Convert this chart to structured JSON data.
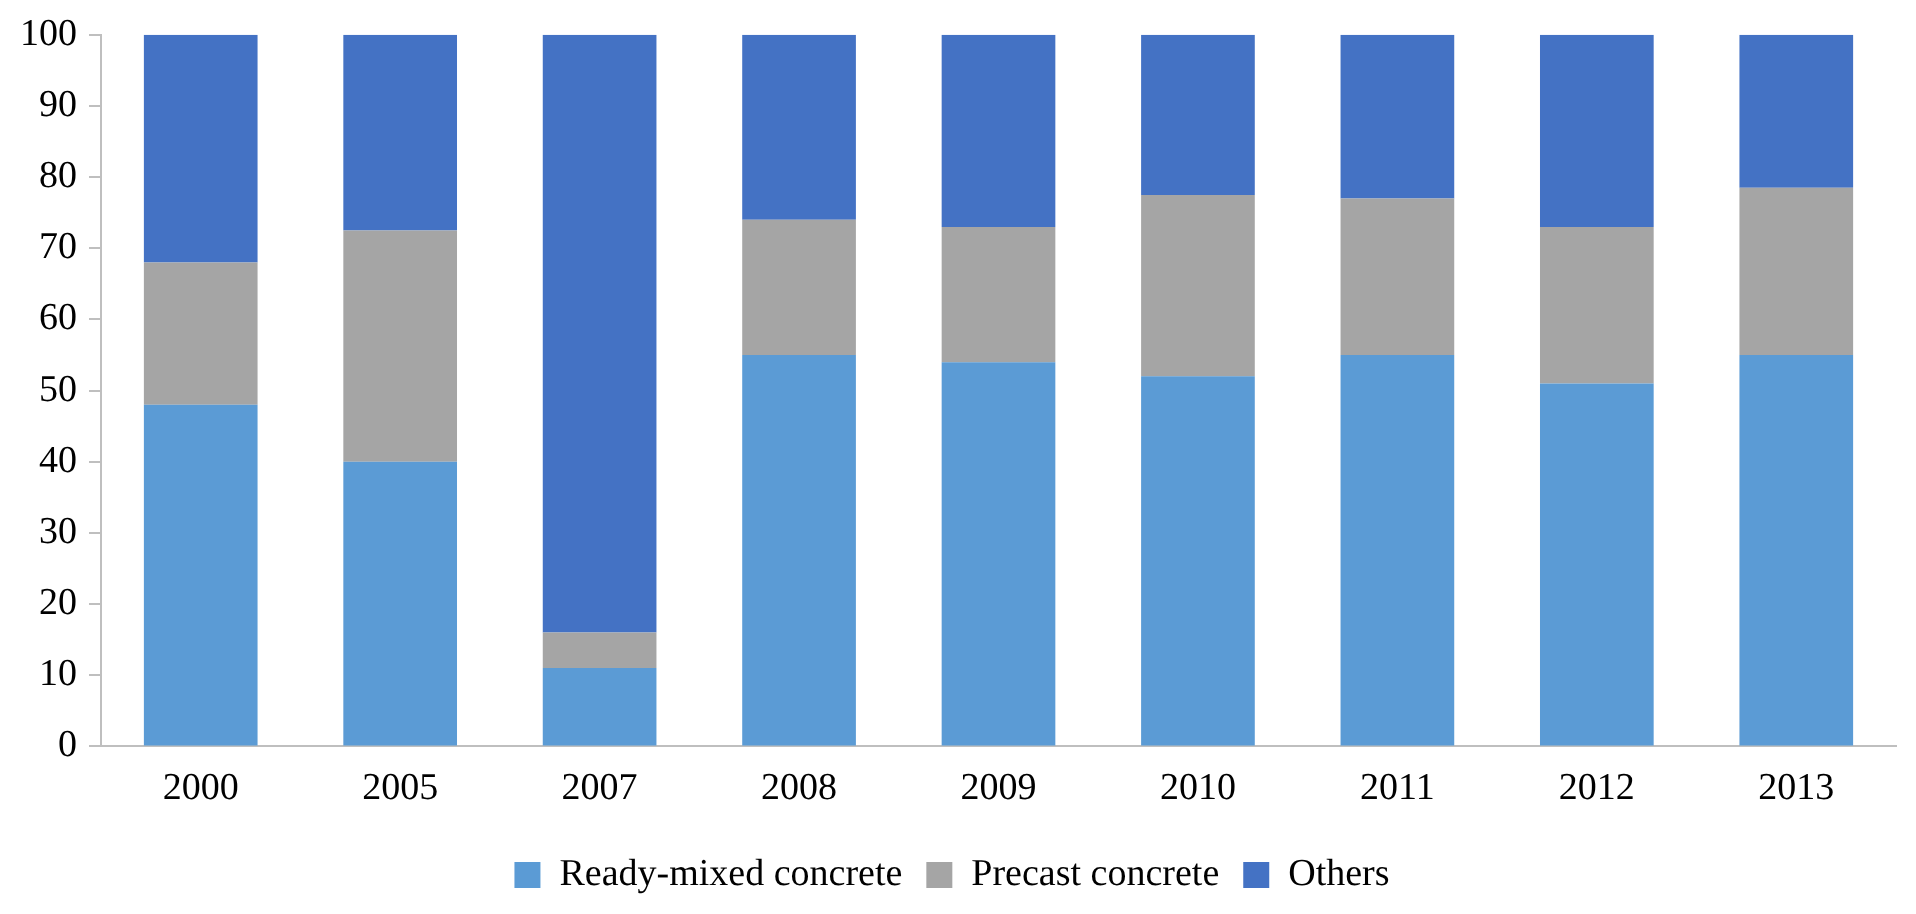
{
  "chart_data": {
    "type": "bar",
    "stacked": true,
    "categories": [
      "2000",
      "2005",
      "2007",
      "2008",
      "2009",
      "2010",
      "2011",
      "2012",
      "2013"
    ],
    "series": [
      {
        "name": "Ready-mixed concrete",
        "color": "#5b9bd5",
        "values": [
          48,
          40,
          11,
          55,
          54,
          52,
          55,
          51,
          55
        ]
      },
      {
        "name": "Precast concrete",
        "color": "#a5a5a5",
        "values": [
          20,
          32.5,
          5,
          19,
          19,
          25.5,
          22,
          22,
          23.5
        ]
      },
      {
        "name": "Others",
        "color": "#4472c4",
        "values": [
          32,
          27.5,
          84,
          26,
          27,
          22.5,
          23,
          27,
          21.5
        ]
      }
    ],
    "ylim": [
      0,
      100
    ],
    "yticks": [
      0,
      10,
      20,
      30,
      40,
      50,
      60,
      70,
      80,
      90,
      100
    ],
    "grid": false,
    "legend": "bottom"
  }
}
